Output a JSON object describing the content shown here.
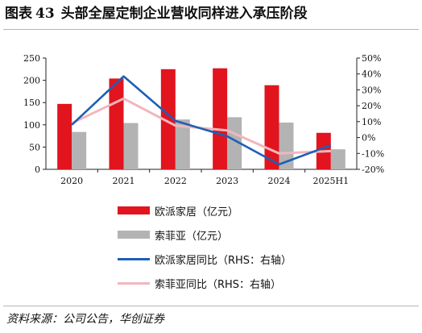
{
  "title": {
    "prefix": "图表",
    "number": "43",
    "text": "头部全屋定制企业营收同样进入承压阶段"
  },
  "source": "资料来源：公司公告，华创证券",
  "colors": {
    "bar1": "#e2141e",
    "bar2": "#b3b3b3",
    "line1": "#1e5fb4",
    "line2": "#f0b7bd"
  },
  "chart_data": {
    "type": "bar",
    "categories": [
      "2020",
      "2021",
      "2022",
      "2023",
      "2024",
      "2025H1"
    ],
    "series": [
      {
        "name": "欧派家居（亿元）",
        "kind": "bar",
        "axis": "left",
        "values": [
          147,
          204,
          225,
          227,
          189,
          82
        ]
      },
      {
        "name": "索菲亚（亿元）",
        "kind": "bar",
        "axis": "left",
        "values": [
          84,
          104,
          112,
          117,
          105,
          45
        ]
      },
      {
        "name": "欧派家居同比（RHS：右轴）",
        "kind": "line",
        "axis": "right",
        "values": [
          8,
          38.5,
          10.5,
          0.8,
          -16.9,
          -4.8
        ]
      },
      {
        "name": "索菲亚同比（RHS：右轴）",
        "kind": "line",
        "axis": "right",
        "values": [
          9,
          24.5,
          7.5,
          4.5,
          -10,
          -8.5
        ]
      }
    ],
    "left_ticks": [
      "0",
      "50",
      "100",
      "150",
      "200",
      "250"
    ],
    "right_ticks": [
      "-20%",
      "-10%",
      "0%",
      "10%",
      "20%",
      "30%",
      "40%",
      "50%"
    ],
    "ylim_left": [
      0,
      250
    ],
    "ylim_right": [
      -20,
      50
    ],
    "legend_position": "below-center",
    "grid": false
  }
}
